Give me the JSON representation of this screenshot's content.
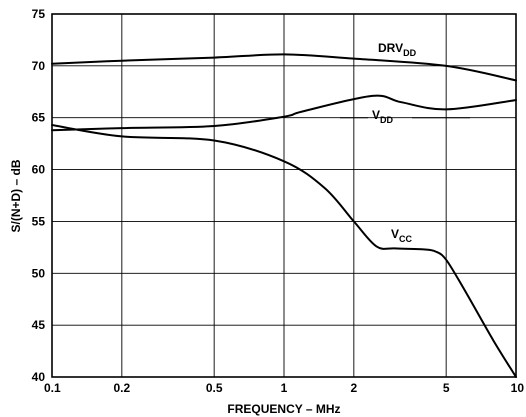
{
  "chart_data": {
    "type": "line",
    "title": "",
    "xlabel": "FREQUENCY – MHz",
    "ylabel": "S/(N+D) – dB",
    "x_scale": "log",
    "xlim": [
      0.1,
      10
    ],
    "ylim": [
      40,
      75
    ],
    "x_ticks": [
      0.1,
      0.2,
      0.5,
      1,
      2,
      5,
      10
    ],
    "x_tick_labels": [
      "0.1",
      "0.2",
      "0.5",
      "1",
      "2",
      "5",
      "10"
    ],
    "y_ticks": [
      40,
      45,
      50,
      55,
      60,
      65,
      70,
      75
    ],
    "y_tick_labels": [
      "40",
      "45",
      "50",
      "55",
      "60",
      "65",
      "70",
      "75"
    ],
    "grid": true,
    "series": [
      {
        "name": "DRVDD",
        "label_main": "DRV",
        "label_sub": "DD",
        "x": [
          0.1,
          0.2,
          0.5,
          1,
          2,
          5,
          10
        ],
        "y": [
          70.2,
          70.5,
          70.8,
          71.1,
          70.7,
          70.0,
          68.6
        ]
      },
      {
        "name": "VDD",
        "label_main": "V",
        "label_sub": "DD",
        "x": [
          0.1,
          0.2,
          0.5,
          1,
          1.2,
          2.4,
          3.2,
          5,
          10
        ],
        "y": [
          63.8,
          64.0,
          64.2,
          65.1,
          65.6,
          67.1,
          66.5,
          65.8,
          66.7
        ]
      },
      {
        "name": "VCC",
        "label_main": "V",
        "label_sub": "CC",
        "x": [
          0.1,
          0.2,
          0.5,
          1,
          1.5,
          2,
          2.5,
          3,
          4,
          4.5,
          5,
          6,
          8,
          10
        ],
        "y": [
          64.3,
          63.2,
          62.8,
          60.8,
          58.2,
          55.0,
          52.6,
          52.4,
          52.3,
          52.1,
          51.3,
          48.4,
          43.5,
          40.0
        ]
      }
    ]
  }
}
